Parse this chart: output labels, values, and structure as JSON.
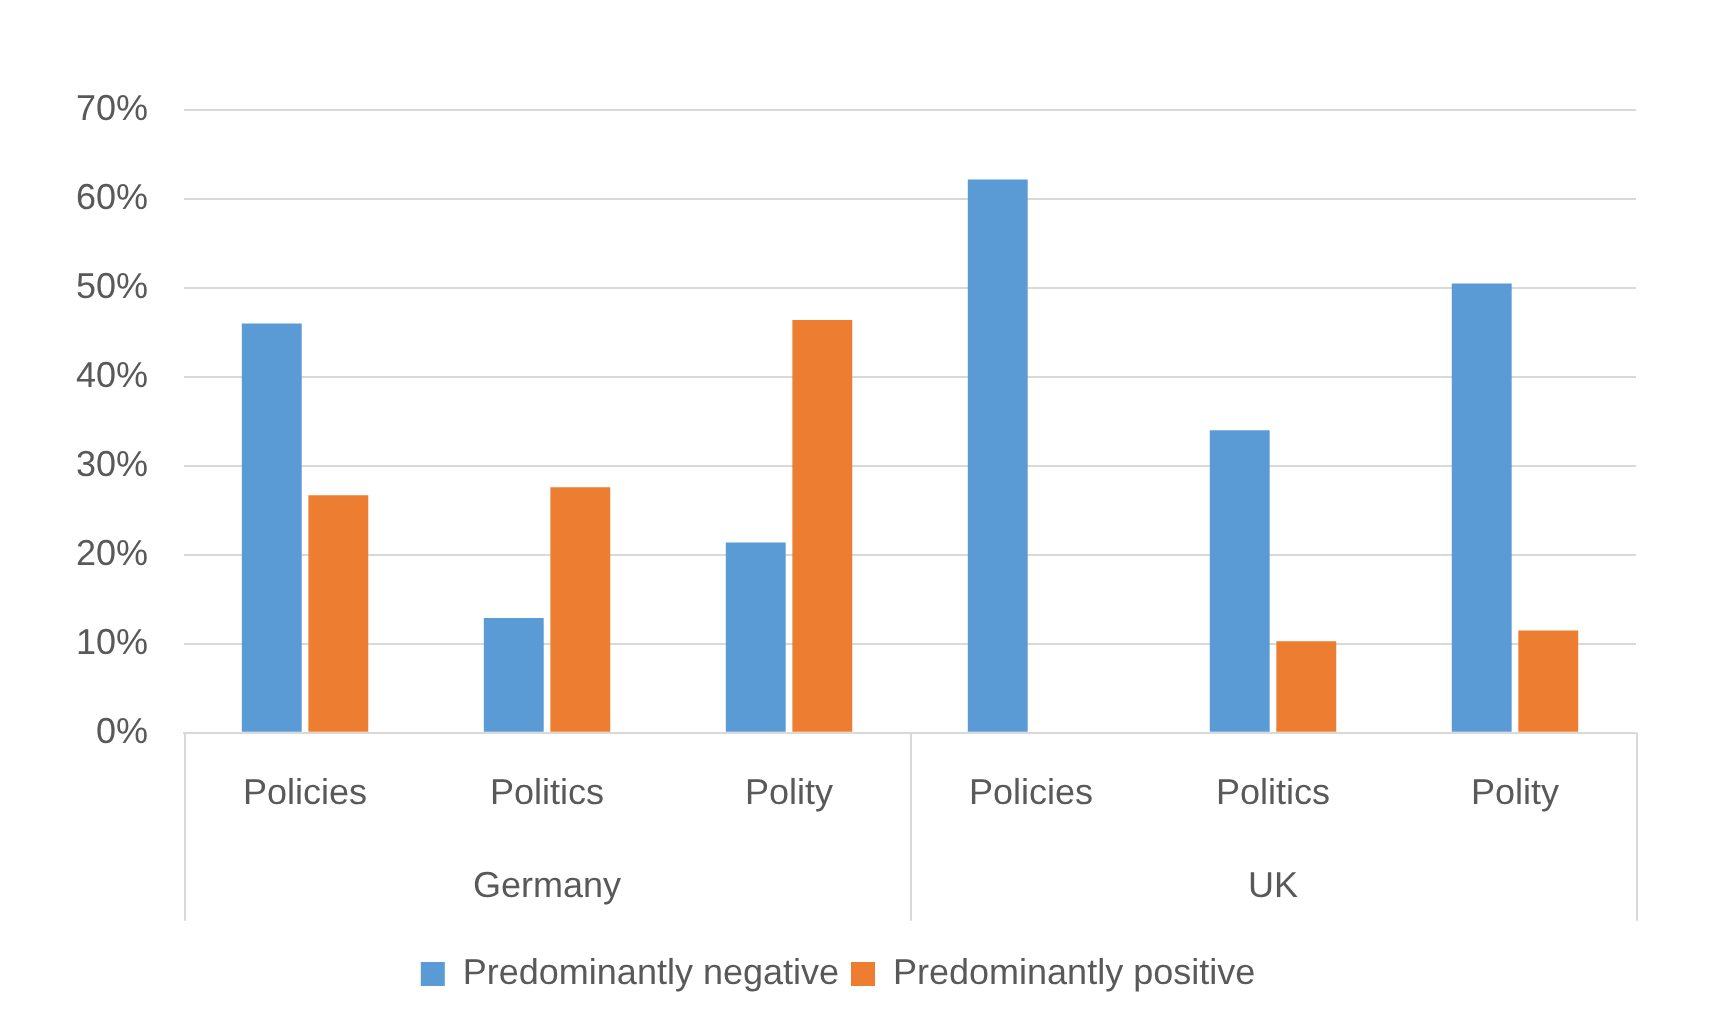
{
  "chart_data": {
    "type": "bar",
    "categories": [
      "Policies",
      "Politics",
      "Polity",
      "Policies",
      "Politics",
      "Polity"
    ],
    "annotations": [
      "Germany",
      "UK"
    ],
    "series": [
      {
        "name": "Predominantly negative",
        "color": "#5b9bd5",
        "values": [
          46,
          12.9,
          21.4,
          62.2,
          34,
          50.5
        ]
      },
      {
        "name": "Predominantly positive",
        "color": "#ed7d31",
        "values": [
          26.7,
          27.6,
          46.4,
          0,
          10.3,
          11.5
        ]
      }
    ],
    "ylim": [
      0,
      70
    ],
    "yticks": [
      {
        "value": 0,
        "label": "0%"
      },
      {
        "value": 10,
        "label": "10%"
      },
      {
        "value": 20,
        "label": "20%"
      },
      {
        "value": 30,
        "label": "30%"
      },
      {
        "value": 40,
        "label": "40%"
      },
      {
        "value": 50,
        "label": "50%"
      },
      {
        "value": 60,
        "label": "60%"
      },
      {
        "value": 70,
        "label": "70%"
      }
    ],
    "grid": "y",
    "legend": "bottom"
  }
}
